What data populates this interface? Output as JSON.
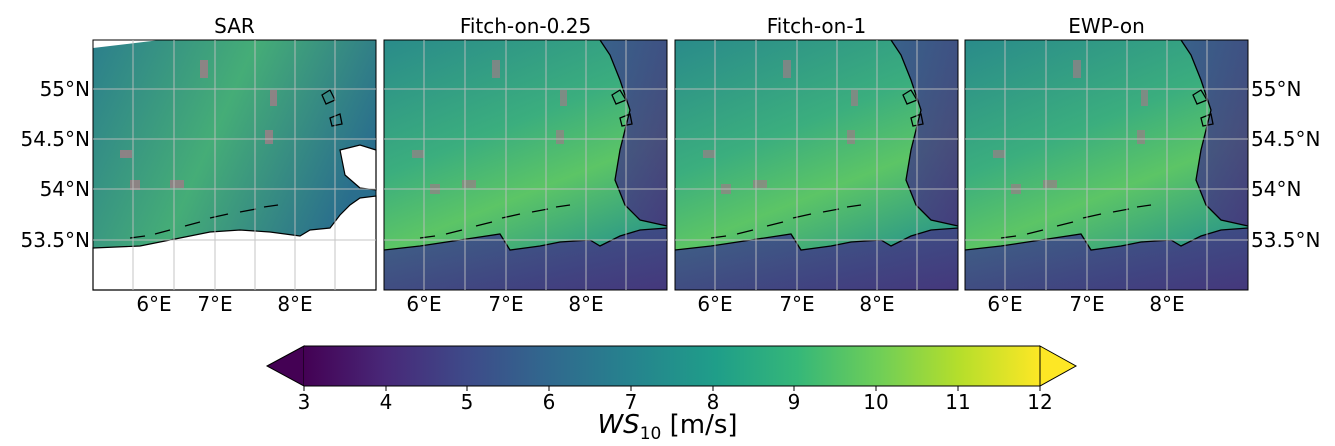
{
  "panels": [
    {
      "title": "SAR"
    },
    {
      "title": "Fitch-on-0.25"
    },
    {
      "title": "Fitch-on-1"
    },
    {
      "title": "EWP-on"
    }
  ],
  "axes": {
    "lat_ticks": [
      "55°N",
      "54.5°N",
      "54°N",
      "53.5°N"
    ],
    "lon_ticks": [
      "6°E",
      "7°E",
      "8°E"
    ]
  },
  "colorbar": {
    "ticks": [
      "3",
      "4",
      "5",
      "6",
      "7",
      "8",
      "9",
      "10",
      "11",
      "12"
    ],
    "label_var": "WS",
    "label_sub": "10",
    "label_unit": "[m/s]",
    "colormap": "viridis",
    "extend": "both",
    "range": [
      3,
      12
    ]
  },
  "colors": {
    "grid": "#bfbfbf",
    "coastline": "#000000",
    "land_mask_sar": "#ffffff",
    "wind_farm": "#9a7f86"
  }
}
